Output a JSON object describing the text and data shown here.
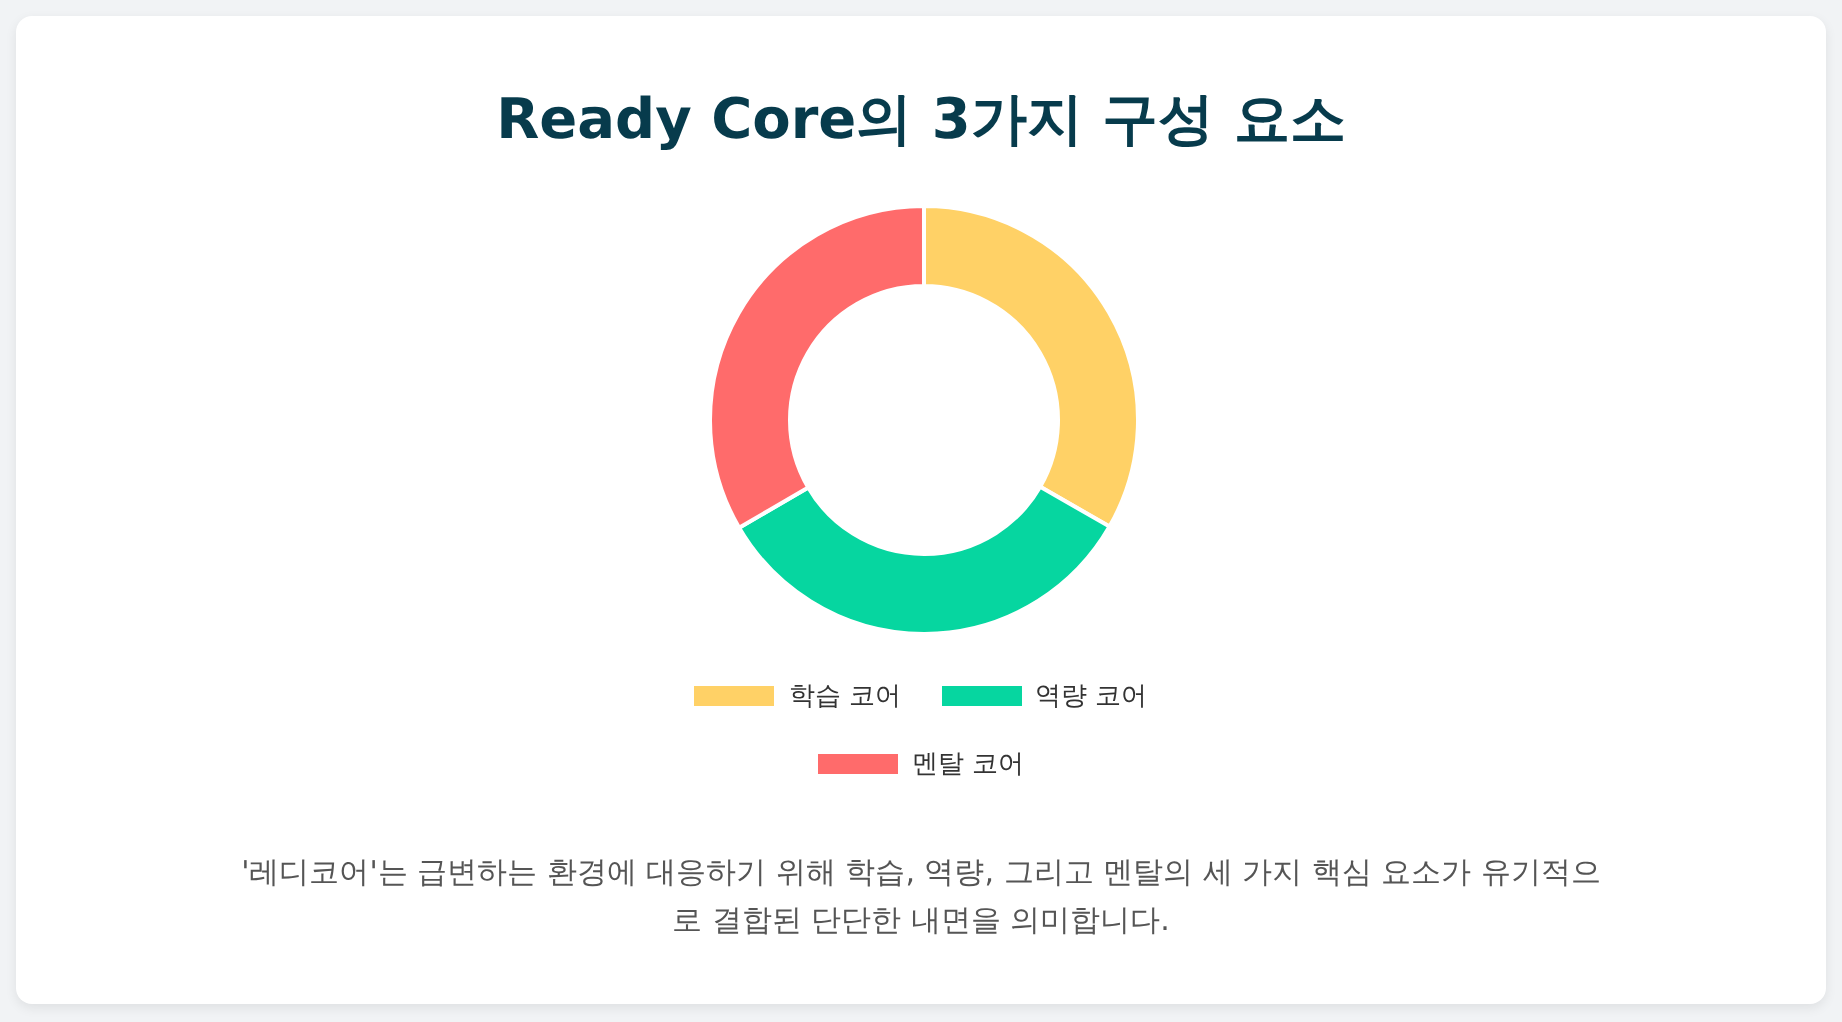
{
  "chart_data": {
    "type": "donut",
    "title": "Ready Core의 3가지 구성 요소",
    "categories": [
      "학습 코어",
      "역량 코어",
      "멘탈 코어"
    ],
    "values": [
      33.3,
      33.3,
      33.4
    ],
    "colors": [
      "#ffd166",
      "#06d6a0",
      "#ff6b6b"
    ],
    "legend": "bottom",
    "annotations": [
      "'레디코어'는 급변하는 환경에 대응하기 위해 학습, 역량, 그리고 멘탈의 세 가지 핵심 요소가 유기적으로 결합된 단단한 내면을 의미합니다."
    ]
  }
}
